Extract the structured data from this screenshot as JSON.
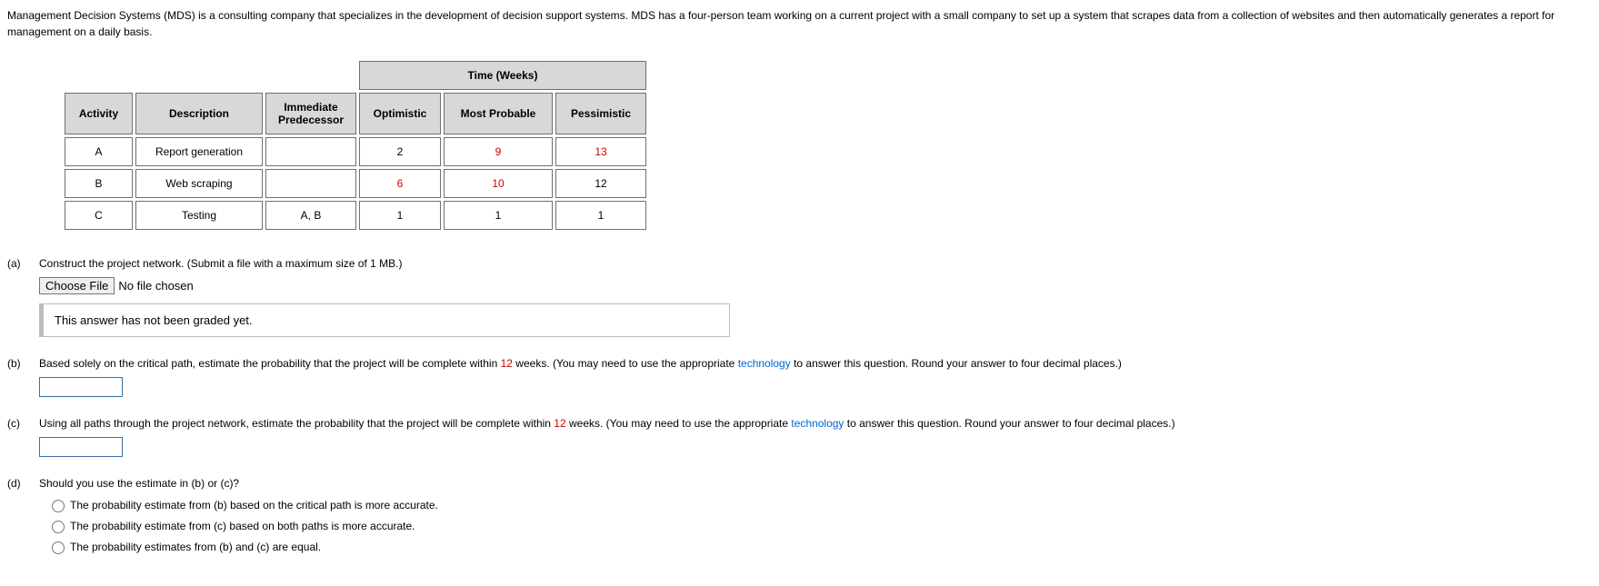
{
  "intro": "Management Decision Systems (MDS) is a consulting company that specializes in the development of decision support systems. MDS has a four-person team working on a current project with a small company to set up a system that scrapes data from a collection of websites and then automatically generates a report for management on a daily basis.",
  "table": {
    "time_group_header": "Time (Weeks)",
    "headers": {
      "activity": "Activity",
      "description": "Description",
      "predecessor": "Immediate Predecessor",
      "optimistic": "Optimistic",
      "most_probable": "Most Probable",
      "pessimistic": "Pessimistic"
    },
    "rows": [
      {
        "activity": "A",
        "description": "Report generation",
        "predecessor": "",
        "optimistic": "2",
        "most_probable": "9",
        "pessimistic": "13",
        "hl": [
          false,
          true,
          true
        ]
      },
      {
        "activity": "B",
        "description": "Web scraping",
        "predecessor": "",
        "optimistic": "6",
        "most_probable": "10",
        "pessimistic": "12",
        "hl": [
          true,
          true,
          false
        ]
      },
      {
        "activity": "C",
        "description": "Testing",
        "predecessor": "A, B",
        "optimistic": "1",
        "most_probable": "1",
        "pessimistic": "1",
        "hl": [
          false,
          false,
          false
        ]
      }
    ]
  },
  "parts": {
    "a": {
      "label": "(a)",
      "text": "Construct the project network. (Submit a file with a maximum size of 1 MB.)",
      "file_button": "Choose File",
      "file_status": "No file chosen",
      "not_graded": "This answer has not been graded yet."
    },
    "b": {
      "label": "(b)",
      "text_1": "Based solely on the critical path, estimate the probability that the project will be complete within ",
      "weeks": "12",
      "text_2": " weeks. (You may need to use the appropriate ",
      "tech": "technology",
      "text_3": " to answer this question. Round your answer to four decimal places.)"
    },
    "c": {
      "label": "(c)",
      "text_1": "Using all paths through the project network, estimate the probability that the project will be complete within ",
      "weeks": "12",
      "text_2": " weeks. (You may need to use the appropriate ",
      "tech": "technology",
      "text_3": " to answer this question. Round your answer to four decimal places.)"
    },
    "d": {
      "label": "(d)",
      "text": "Should you use the estimate in (b) or (c)?",
      "options": [
        "The probability estimate from (b) based on the critical path is more accurate.",
        "The probability estimate from (c) based on both paths is more accurate.",
        "The probability estimates from (b) and (c) are equal."
      ]
    }
  }
}
